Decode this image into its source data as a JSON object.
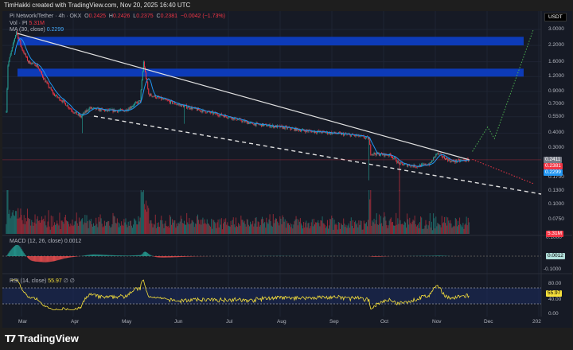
{
  "header": {
    "credit": "TimHakki created with TradingView.com, Nov 20, 2025 16:40 UTC"
  },
  "legend": {
    "symbol": "Pi Network/Tether · 4h · OKX",
    "o_label": "O",
    "open": "0.2425",
    "h_label": "H",
    "high": "0.2426",
    "l_label": "L",
    "low": "0.2375",
    "c_label": "C",
    "close": "0.2381",
    "change": "−0.0042 (−1.73%)",
    "vol_label": "Vol · PI",
    "vol_value": "5.31M",
    "ma_label": "MA (30, close)",
    "ma_value": "0.2299",
    "macd_label": "MACD (12, 26, close)",
    "macd_value": "0.0012",
    "rsi_label": "RSI (14, close)",
    "rsi_value": "55.97",
    "rsi_extra": "∅ ∅"
  },
  "currency_button": "USDT",
  "price_tags": {
    "prev": "0.2411",
    "last": "0.2381",
    "ma": "0.2299",
    "volume": "5.31M",
    "macd": "0.0012",
    "rsi": "55.97"
  },
  "footer": {
    "brand": "TradingView"
  },
  "colors": {
    "up": "#26a69a",
    "down": "#f23645",
    "ma": "#2196f3",
    "zone": "#0d3bb8",
    "rsi": "#f7e03b",
    "bg": "#161a25"
  },
  "chart_data": {
    "type": "candlestick",
    "scale": "log",
    "grid": true,
    "y_ticks": [
      "3.0000",
      "2.2000",
      "1.6000",
      "1.2000",
      "0.9000",
      "0.7000",
      "0.5500",
      "0.4000",
      "0.3000",
      "0.1700",
      "0.1300",
      "0.1000",
      "0.0750"
    ],
    "x_ticks": [
      "Mar",
      "Apr",
      "May",
      "Jun",
      "Jul",
      "Aug",
      "Sep",
      "Oct",
      "Nov",
      "Dec",
      "202"
    ],
    "macd_ticks": [
      "0.1000",
      "-0.1000"
    ],
    "rsi_ticks": [
      "80.00",
      "40.00",
      "0.00"
    ],
    "close_path": [
      [
        "2025-02-20",
        0.62
      ],
      [
        "2025-02-21",
        1.5
      ],
      [
        "2025-02-26",
        2.9
      ],
      [
        "2025-03-01",
        2.1
      ],
      [
        "2025-03-05",
        1.6
      ],
      [
        "2025-03-10",
        1.5
      ],
      [
        "2025-03-15",
        1.1
      ],
      [
        "2025-03-20",
        0.85
      ],
      [
        "2025-03-25",
        0.75
      ],
      [
        "2025-04-01",
        0.6
      ],
      [
        "2025-04-05",
        0.55
      ],
      [
        "2025-04-10",
        0.65
      ],
      [
        "2025-04-20",
        0.62
      ],
      [
        "2025-05-01",
        0.62
      ],
      [
        "2025-05-10",
        0.75
      ],
      [
        "2025-05-12",
        1.6
      ],
      [
        "2025-05-15",
        0.85
      ],
      [
        "2025-05-20",
        0.8
      ],
      [
        "2025-06-01",
        0.7
      ],
      [
        "2025-06-15",
        0.62
      ],
      [
        "2025-07-01",
        0.55
      ],
      [
        "2025-07-15",
        0.48
      ],
      [
        "2025-08-01",
        0.45
      ],
      [
        "2025-08-15",
        0.42
      ],
      [
        "2025-09-01",
        0.4
      ],
      [
        "2025-09-15",
        0.38
      ],
      [
        "2025-09-22",
        0.36
      ],
      [
        "2025-09-23",
        0.27
      ],
      [
        "2025-10-05",
        0.26
      ],
      [
        "2025-10-10",
        0.22
      ],
      [
        "2025-10-20",
        0.21
      ],
      [
        "2025-10-28",
        0.22
      ],
      [
        "2025-11-01",
        0.27
      ],
      [
        "2025-11-05",
        0.25
      ],
      [
        "2025-11-10",
        0.23
      ],
      [
        "2025-11-20",
        0.238
      ]
    ],
    "wick_lows": [
      [
        "2025-04-06",
        0.4
      ],
      [
        "2025-06-05",
        0.48
      ],
      [
        "2025-09-22",
        0.16
      ],
      [
        "2025-10-10",
        0.13
      ]
    ],
    "resistance_zones": [
      [
        2.2,
        2.6
      ],
      [
        1.2,
        1.4
      ]
    ],
    "projection_up": [
      [
        "2025-11-22",
        0.28
      ],
      [
        "2025-12-01",
        0.45
      ],
      [
        "2025-12-05",
        0.36
      ],
      [
        "2025-12-28",
        3.0
      ]
    ],
    "projection_down": [
      [
        "2025-11-22",
        0.24
      ],
      [
        "2025-12-28",
        0.15
      ]
    ]
  }
}
